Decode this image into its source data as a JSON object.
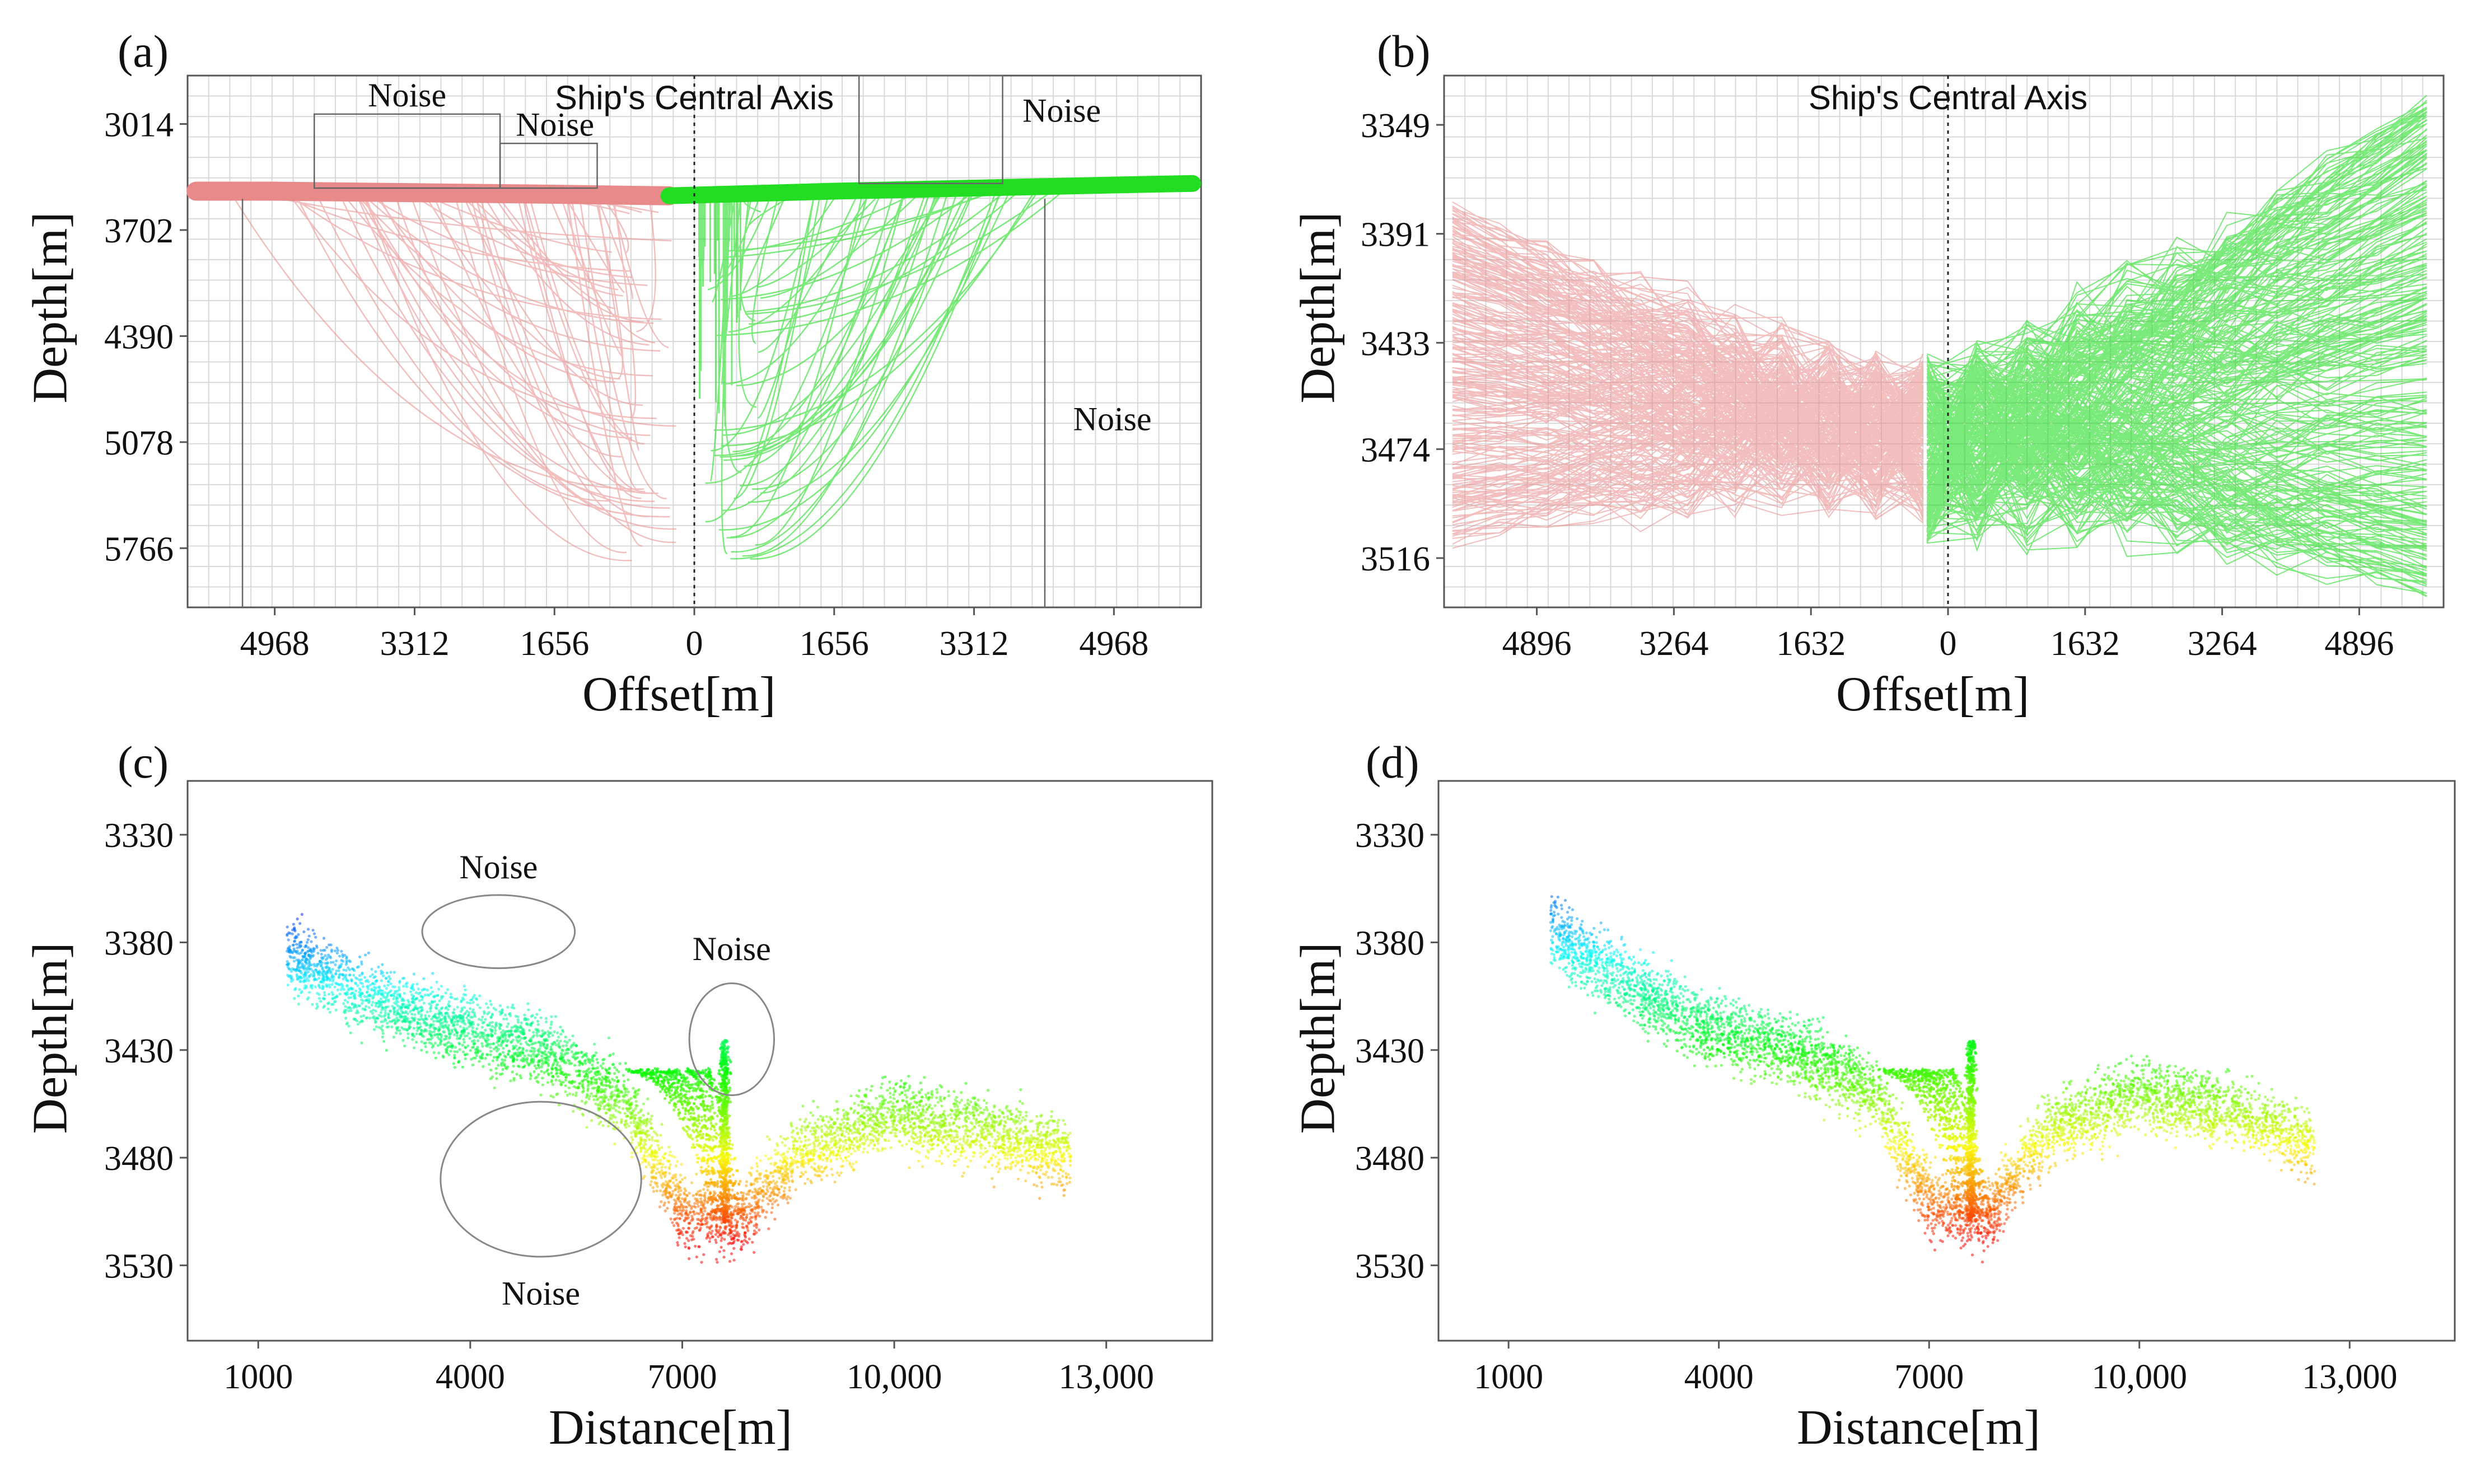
{
  "chart_data": [
    {
      "panel": "(a)",
      "type": "line",
      "axis_title": "Ship's Central Axis",
      "xlabel": "Offset[m]",
      "ylabel": "Depth[m]",
      "x_ticks": [
        "4968",
        "3312",
        "1656",
        "0",
        "1656",
        "3312",
        "4968"
      ],
      "x_tick_values": [
        -4968,
        -3312,
        -1656,
        0,
        1656,
        3312,
        4968
      ],
      "y_ticks": [
        "3014",
        "3702",
        "4390",
        "5078",
        "5766"
      ],
      "y_tick_values": [
        3014,
        3702,
        4390,
        5078,
        5766
      ],
      "xlim": [
        -6000,
        6000
      ],
      "ylim": [
        2700,
        6150
      ],
      "grid": true,
      "annotations": [
        "Noise",
        "Noise",
        "Noise",
        "Noise"
      ],
      "series": [
        {
          "color": "#e88a8a",
          "x": [
            -5900,
            -4968,
            -3312,
            -1656,
            -300
          ],
          "y": [
            3450,
            3450,
            3460,
            3470,
            3480
          ]
        },
        {
          "color": "#22dd22",
          "x": [
            -300,
            1656,
            3312,
            4968,
            5900
          ],
          "y": [
            3480,
            3450,
            3430,
            3410,
            3400
          ]
        }
      ]
    },
    {
      "panel": "(b)",
      "type": "line",
      "axis_title": "Ship's Central Axis",
      "xlabel": "Offset[m]",
      "ylabel": "Depth[m]",
      "x_ticks": [
        "4896",
        "3264",
        "1632",
        "0",
        "1632",
        "3264",
        "4896"
      ],
      "x_tick_values": [
        -4896,
        -3264,
        -1632,
        0,
        1632,
        3264,
        4896
      ],
      "y_ticks": [
        "3349",
        "3391",
        "3433",
        "3474",
        "3516"
      ],
      "y_tick_values": [
        3349,
        3391,
        3433,
        3474,
        3516
      ],
      "xlim": [
        -6000,
        5900
      ],
      "ylim": [
        3330,
        3535
      ],
      "grid": true,
      "series": [
        {
          "color": "#e88a8a",
          "x": [
            -5900,
            -4896,
            -3264,
            -1632,
            -300
          ],
          "y": [
            3440,
            3420,
            3440,
            3475,
            3505
          ]
        },
        {
          "color": "#22dd22",
          "x": [
            -300,
            1632,
            3264,
            4896,
            5700
          ],
          "y": [
            3460,
            3440,
            3420,
            3390,
            3370
          ]
        }
      ]
    },
    {
      "panel": "(c)",
      "type": "scatter",
      "xlabel": "Distance[m]",
      "ylabel": "Depth[m]",
      "x_ticks": [
        "1000",
        "4000",
        "7000",
        "10,000",
        "13,000"
      ],
      "x_tick_values": [
        1000,
        4000,
        7000,
        10000,
        13000
      ],
      "y_ticks": [
        "3330",
        "3380",
        "3430",
        "3480",
        "3530"
      ],
      "y_tick_values": [
        3330,
        3380,
        3430,
        3480,
        3530
      ],
      "xlim": [
        0,
        14500
      ],
      "ylim": [
        3305,
        3565
      ],
      "grid": false,
      "annotations": [
        "Noise",
        "Noise",
        "Noise"
      ],
      "colormap": "depth-rainbow",
      "centerline": {
        "x": [
          1400,
          2500,
          3800,
          5000,
          6200,
          7000,
          7800,
          8600,
          10000,
          11500,
          12500
        ],
        "y": [
          3385,
          3405,
          3420,
          3430,
          3455,
          3505,
          3510,
          3480,
          3460,
          3470,
          3480
        ]
      }
    },
    {
      "panel": "(d)",
      "type": "scatter",
      "xlabel": "Distance[m]",
      "ylabel": "Depth[m]",
      "x_ticks": [
        "1000",
        "4000",
        "7000",
        "10,000",
        "13,000"
      ],
      "x_tick_values": [
        1000,
        4000,
        7000,
        10000,
        13000
      ],
      "y_ticks": [
        "3330",
        "3380",
        "3430",
        "3480",
        "3530"
      ],
      "y_tick_values": [
        3330,
        3380,
        3430,
        3480,
        3530
      ],
      "xlim": [
        0,
        14500
      ],
      "ylim": [
        3305,
        3565
      ],
      "grid": false,
      "colormap": "depth-rainbow",
      "centerline": {
        "x": [
          1600,
          2500,
          3800,
          5000,
          6200,
          7000,
          7800,
          8600,
          10000,
          11500,
          12500
        ],
        "y": [
          3375,
          3395,
          3420,
          3430,
          3450,
          3500,
          3510,
          3470,
          3450,
          3460,
          3475
        ]
      }
    }
  ],
  "colors": {
    "port": "#e88a8a",
    "starboard": "#22dd22",
    "grid": "#d9d9d9",
    "frame": "#555555"
  }
}
